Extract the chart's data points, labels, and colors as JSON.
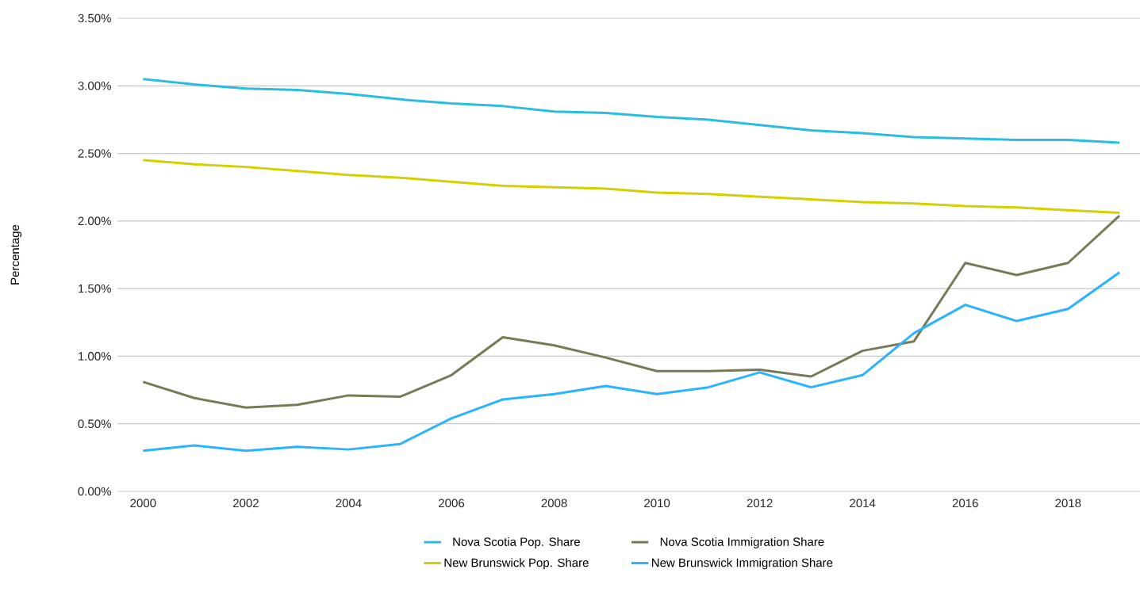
{
  "chart_data": {
    "type": "line",
    "ylabel": "Percentage",
    "x": [
      2000,
      2001,
      2002,
      2003,
      2004,
      2005,
      2006,
      2007,
      2008,
      2009,
      2010,
      2011,
      2012,
      2013,
      2014,
      2015,
      2016,
      2017,
      2018,
      2019
    ],
    "xlim": [
      1999.5,
      2019.4
    ],
    "xticks": [
      2000,
      2002,
      2004,
      2006,
      2008,
      2010,
      2012,
      2014,
      2016,
      2018
    ],
    "ylim": [
      0,
      3.5
    ],
    "yticks": [
      {
        "value": 0,
        "label": "0.00%"
      },
      {
        "value": 0.5,
        "label": "0.50%"
      },
      {
        "value": 1,
        "label": "1.00%"
      },
      {
        "value": 1.5,
        "label": "1.50%"
      },
      {
        "value": 2,
        "label": "2.00%"
      },
      {
        "value": 2.5,
        "label": "2.50%"
      },
      {
        "value": 3,
        "label": "3.00%"
      },
      {
        "value": 3.5,
        "label": "3.50%"
      }
    ],
    "grid": "y",
    "legend": "bottom",
    "marker": "none",
    "line_style": "solid",
    "series": [
      {
        "name": "Nova Scotia Pop. Share",
        "color": "#2bbde0",
        "values": [
          3.05,
          3.01,
          2.98,
          2.97,
          2.94,
          2.9,
          2.87,
          2.85,
          2.81,
          2.8,
          2.77,
          2.75,
          2.71,
          2.67,
          2.65,
          2.62,
          2.61,
          2.6,
          2.6,
          2.58
        ]
      },
      {
        "name": "Nova Scotia Immigration Share",
        "color": "#787a57",
        "values": [
          0.81,
          0.69,
          0.62,
          0.64,
          0.71,
          0.7,
          0.86,
          1.14,
          1.08,
          0.99,
          0.89,
          0.89,
          0.9,
          0.85,
          1.04,
          1.11,
          1.69,
          1.6,
          1.69,
          2.04
        ]
      },
      {
        "name": "New Brunswick Pop. Share",
        "color": "#d4cf00",
        "values": [
          2.45,
          2.42,
          2.4,
          2.37,
          2.34,
          2.32,
          2.29,
          2.26,
          2.25,
          2.24,
          2.21,
          2.2,
          2.18,
          2.16,
          2.14,
          2.13,
          2.11,
          2.1,
          2.08,
          2.06
        ]
      },
      {
        "name": "New Brunswick Immigration Share",
        "color": "#2ab3ff",
        "values": [
          0.3,
          0.34,
          0.3,
          0.33,
          0.31,
          0.35,
          0.54,
          0.68,
          0.72,
          0.78,
          0.72,
          0.77,
          0.88,
          0.77,
          0.86,
          1.17,
          1.38,
          1.26,
          1.35,
          1.62
        ]
      }
    ]
  }
}
